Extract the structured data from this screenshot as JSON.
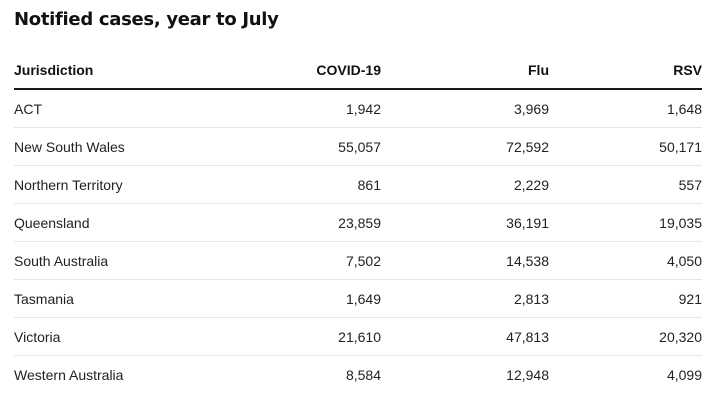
{
  "chart_data": {
    "type": "table",
    "title": "Notified cases, year to July",
    "columns": [
      "Jurisdiction",
      "COVID-19",
      "Flu",
      "RSV"
    ],
    "rows": [
      [
        "ACT",
        "1,942",
        "3,969",
        "1,648"
      ],
      [
        "New South Wales",
        "55,057",
        "72,592",
        "50,171"
      ],
      [
        "Northern Territory",
        "861",
        "2,229",
        "557"
      ],
      [
        "Queensland",
        "23,859",
        "36,191",
        "19,035"
      ],
      [
        "South Australia",
        "7,502",
        "14,538",
        "4,050"
      ],
      [
        "Tasmania",
        "1,649",
        "2,813",
        "921"
      ],
      [
        "Victoria",
        "21,610",
        "47,813",
        "20,320"
      ],
      [
        "Western Australia",
        "8,584",
        "12,948",
        "4,099"
      ]
    ]
  },
  "colors": {
    "header_rule": "#1a1a1a",
    "row_divider": "#e6e6e6",
    "text": "#222222"
  }
}
